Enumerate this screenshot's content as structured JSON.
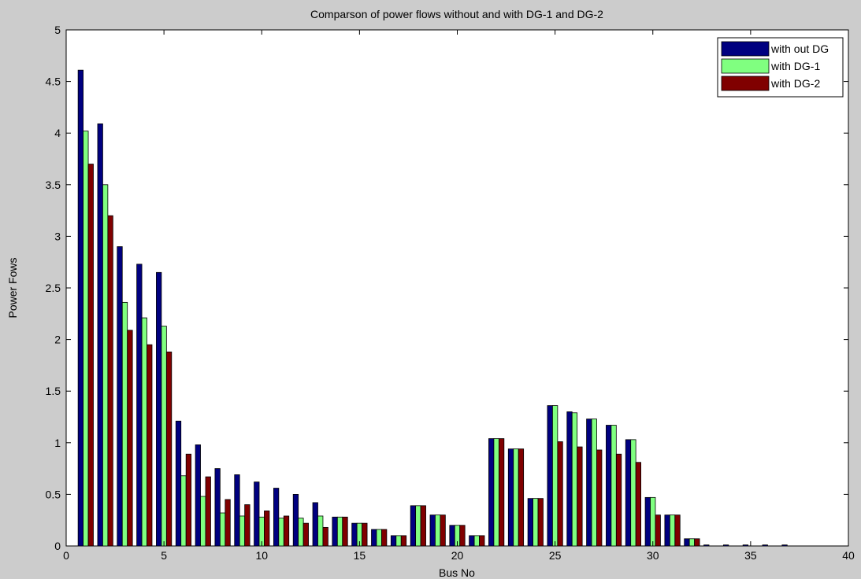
{
  "chart_data": {
    "type": "bar",
    "title": "Comparson of power flows without and with DG-1 and DG-2",
    "xlabel": "Bus No",
    "ylabel": "Power Fows",
    "xlim": [
      0,
      40
    ],
    "ylim": [
      0,
      5
    ],
    "xticks": [
      0,
      5,
      10,
      15,
      20,
      25,
      30,
      35,
      40
    ],
    "yticks": [
      0,
      0.5,
      1,
      1.5,
      2,
      2.5,
      3,
      3.5,
      4,
      4.5,
      5
    ],
    "ytick_labels": [
      "0",
      "0.5",
      "1",
      "1.5",
      "2",
      "2.5",
      "3",
      "3.5",
      "4",
      "4.5",
      "5"
    ],
    "grid": false,
    "legend_position": "top-right",
    "x": [
      1,
      2,
      3,
      4,
      5,
      6,
      7,
      8,
      9,
      10,
      11,
      12,
      13,
      14,
      15,
      16,
      17,
      18,
      19,
      20,
      21,
      22,
      23,
      24,
      25,
      26,
      27,
      28,
      29,
      30,
      31,
      32,
      33,
      34,
      35,
      36,
      37
    ],
    "series": [
      {
        "name": "with out DG",
        "color": "#000080",
        "values": [
          4.61,
          4.09,
          2.9,
          2.73,
          2.65,
          1.21,
          0.98,
          0.75,
          0.69,
          0.62,
          0.56,
          0.5,
          0.42,
          0.28,
          0.22,
          0.16,
          0.1,
          0.39,
          0.3,
          0.2,
          0.1,
          1.04,
          0.94,
          0.46,
          1.36,
          1.3,
          1.23,
          1.17,
          1.03,
          0.47,
          0.3,
          0.07,
          0.01,
          0.01,
          0.01,
          0.01,
          0.01
        ]
      },
      {
        "name": "with DG-1",
        "color": "#80ff80",
        "values": [
          4.02,
          3.5,
          2.36,
          2.21,
          2.13,
          0.68,
          0.48,
          0.32,
          0.29,
          0.28,
          0.27,
          0.27,
          0.29,
          0.28,
          0.22,
          0.16,
          0.1,
          0.39,
          0.3,
          0.2,
          0.1,
          1.04,
          0.94,
          0.46,
          1.36,
          1.29,
          1.23,
          1.17,
          1.03,
          0.47,
          0.3,
          0.07,
          0,
          0,
          0,
          0,
          0
        ]
      },
      {
        "name": "with DG-2",
        "color": "#800000",
        "values": [
          3.7,
          3.2,
          2.09,
          1.95,
          1.88,
          0.89,
          0.67,
          0.45,
          0.4,
          0.34,
          0.29,
          0.22,
          0.18,
          0.28,
          0.22,
          0.16,
          0.1,
          0.39,
          0.3,
          0.2,
          0.1,
          1.04,
          0.94,
          0.46,
          1.01,
          0.96,
          0.93,
          0.89,
          0.81,
          0.3,
          0.3,
          0.07,
          0,
          0,
          0,
          0,
          0
        ]
      }
    ]
  }
}
